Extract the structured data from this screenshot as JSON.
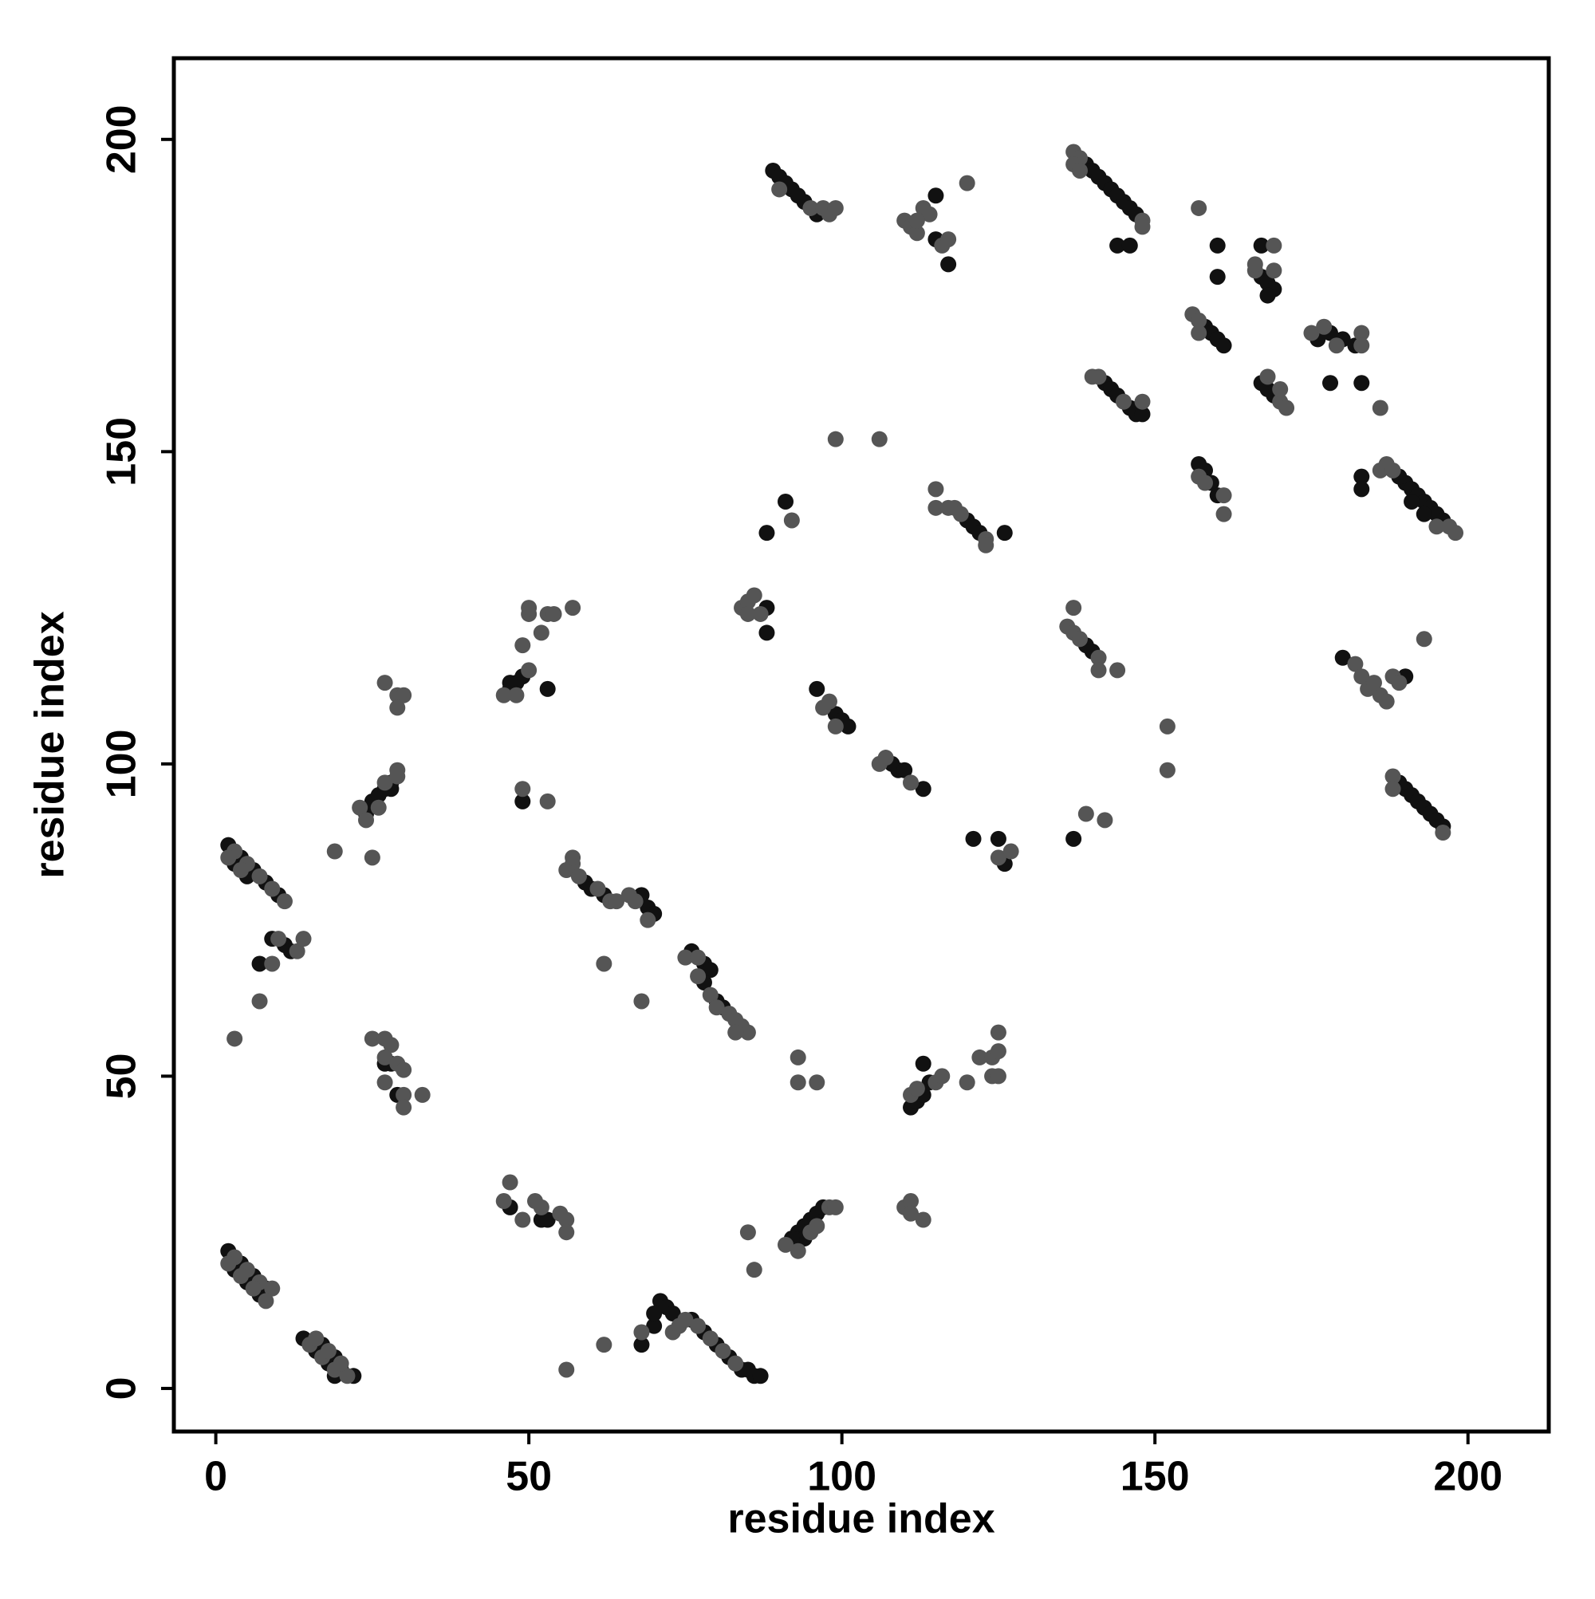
{
  "chart_data": {
    "type": "scatter",
    "xlabel": "residue index",
    "ylabel": "residue index",
    "xlim": [
      -6.7,
      212.9
    ],
    "ylim": [
      -6.9,
      213
    ],
    "xticks": [
      0,
      50,
      100,
      150,
      200
    ],
    "yticks": [
      0,
      50,
      100,
      150,
      200
    ],
    "grid": false,
    "series": [
      {
        "color": "#111111",
        "x": [
          2,
          4,
          6,
          8,
          10,
          3,
          5,
          9,
          11,
          12,
          7,
          2,
          4,
          6,
          8,
          3,
          5,
          7,
          14,
          16,
          18,
          20,
          22,
          17,
          19,
          19,
          25,
          26,
          27,
          28,
          24,
          28,
          27,
          29,
          28,
          47,
          48,
          49,
          47,
          53,
          49,
          52,
          53,
          47,
          59,
          60,
          62,
          68,
          69,
          70,
          76,
          78,
          79,
          80,
          81,
          78,
          68,
          70,
          71,
          72,
          73,
          76,
          78,
          80,
          82,
          84,
          85,
          86,
          87,
          70,
          93,
          94,
          95,
          96,
          97,
          94,
          92,
          89,
          90,
          92,
          94,
          96,
          91,
          93,
          115,
          117,
          115,
          88,
          88,
          88,
          91,
          96,
          99,
          100,
          101,
          108,
          109,
          110,
          113,
          111,
          112,
          113,
          113,
          114,
          121,
          125,
          126,
          120,
          121,
          122,
          126,
          139,
          140,
          141,
          142,
          143,
          144,
          145,
          146,
          147,
          144,
          146,
          142,
          143,
          144,
          146,
          147,
          148,
          139,
          140,
          137,
          157,
          158,
          159,
          160,
          158,
          159,
          160,
          161,
          160,
          160,
          167,
          167,
          168,
          169,
          168,
          167,
          168,
          169,
          176,
          178,
          180,
          182,
          178,
          183,
          190,
          191,
          192,
          193,
          194,
          195,
          196,
          189,
          191,
          193,
          183,
          183,
          180,
          190,
          190,
          191,
          192,
          193,
          194,
          195,
          196,
          189
        ],
        "y": [
          87,
          85,
          83,
          81,
          79,
          84,
          82,
          72,
          71,
          70,
          68,
          22,
          20,
          18,
          16,
          19,
          17,
          15,
          8,
          6,
          4,
          3,
          2,
          7,
          5,
          2,
          94,
          95,
          96,
          97,
          92,
          96,
          52,
          47,
          52,
          112,
          113,
          114,
          113,
          112,
          94,
          27,
          27,
          29,
          81,
          80,
          79,
          79,
          77,
          76,
          70,
          68,
          67,
          62,
          61,
          65,
          7,
          10,
          14,
          13,
          12,
          11,
          9,
          7,
          5,
          3,
          3,
          2,
          2,
          12,
          25,
          26,
          27,
          28,
          29,
          24,
          24,
          195,
          194,
          192,
          190,
          188,
          193,
          191,
          191,
          180,
          184,
          125,
          121,
          137,
          142,
          112,
          108,
          107,
          106,
          100,
          99,
          99,
          96,
          45,
          46,
          47,
          52,
          49,
          88,
          88,
          84,
          139,
          138,
          137,
          137,
          196,
          195,
          194,
          193,
          192,
          191,
          190,
          189,
          188,
          183,
          183,
          161,
          160,
          159,
          157,
          156,
          156,
          119,
          118,
          88,
          148,
          147,
          145,
          143,
          170,
          169,
          168,
          167,
          183,
          178,
          183,
          178,
          177,
          176,
          175,
          161,
          160,
          159,
          168,
          169,
          168,
          167,
          161,
          161,
          145,
          144,
          143,
          142,
          141,
          140,
          139,
          146,
          142,
          140,
          146,
          144,
          117,
          114,
          96,
          95,
          94,
          93,
          92,
          91,
          90,
          97
        ]
      },
      {
        "color": "#555555",
        "x": [
          3,
          5,
          7,
          9,
          11,
          2,
          4,
          10,
          13,
          14,
          9,
          3,
          7,
          3,
          5,
          7,
          9,
          2,
          4,
          6,
          8,
          15,
          17,
          19,
          21,
          16,
          18,
          20,
          23,
          24,
          26,
          27,
          29,
          29,
          19,
          25,
          27,
          29,
          30,
          29,
          25,
          27,
          28,
          27,
          29,
          30,
          27,
          30,
          30,
          33,
          46,
          48,
          50,
          49,
          50,
          50,
          52,
          53,
          54,
          57,
          49,
          53,
          46,
          47,
          49,
          51,
          52,
          55,
          56,
          56,
          56,
          56,
          57,
          57,
          58,
          61,
          63,
          64,
          66,
          67,
          69,
          62,
          68,
          75,
          77,
          77,
          79,
          80,
          82,
          83,
          84,
          85,
          83,
          68,
          73,
          74,
          75,
          77,
          79,
          81,
          83,
          62,
          85,
          86,
          91,
          93,
          95,
          96,
          98,
          99,
          93,
          93,
          96,
          95,
          97,
          98,
          99,
          90,
          110,
          111,
          112,
          113,
          114,
          116,
          117,
          112,
          120,
          84,
          85,
          86,
          87,
          85,
          92,
          99,
          106,
          97,
          98,
          99,
          106,
          107,
          111,
          111,
          112,
          115,
          116,
          120,
          122,
          124,
          124,
          125,
          125,
          125,
          110,
          111,
          111,
          113,
          125,
          127,
          115,
          115,
          117,
          118,
          119,
          123,
          123,
          137,
          138,
          137,
          138,
          148,
          148,
          140,
          141,
          145,
          148,
          136,
          137,
          138,
          141,
          141,
          137,
          144,
          139,
          142,
          152,
          152,
          161,
          157,
          158,
          161,
          156,
          157,
          157,
          157,
          166,
          169,
          169,
          166,
          170,
          171,
          168,
          170,
          175,
          177,
          179,
          183,
          183,
          186,
          186,
          187,
          188,
          197,
          198,
          195,
          182,
          183,
          184,
          186,
          187,
          188,
          189,
          193,
          185,
          188,
          188,
          196
        ],
        "y": [
          86,
          84,
          82,
          80,
          78,
          85,
          83,
          72,
          70,
          72,
          68,
          56,
          62,
          21,
          19,
          17,
          16,
          20,
          18,
          16,
          14,
          7,
          5,
          3,
          2,
          8,
          6,
          4,
          93,
          91,
          93,
          97,
          98,
          99,
          86,
          85,
          113,
          111,
          111,
          109,
          56,
          56,
          55,
          53,
          52,
          51,
          49,
          47,
          45,
          47,
          111,
          111,
          115,
          119,
          124,
          125,
          121,
          124,
          124,
          125,
          96,
          94,
          30,
          33,
          27,
          30,
          29,
          28,
          27,
          25,
          3,
          83,
          84,
          85,
          82,
          80,
          78,
          78,
          79,
          78,
          75,
          68,
          62,
          69,
          69,
          66,
          63,
          61,
          60,
          59,
          58,
          57,
          57,
          9,
          9,
          10,
          11,
          10,
          8,
          6,
          4,
          7,
          25,
          19,
          23,
          22,
          25,
          26,
          29,
          29,
          53,
          49,
          49,
          189,
          189,
          188,
          189,
          192,
          187,
          186,
          185,
          189,
          188,
          183,
          184,
          187,
          193,
          125,
          126,
          127,
          124,
          124,
          139,
          152,
          152,
          109,
          110,
          106,
          100,
          101,
          97,
          47,
          48,
          49,
          50,
          49,
          53,
          53,
          50,
          57,
          50,
          54,
          29,
          30,
          28,
          27,
          85,
          86,
          144,
          141,
          141,
          141,
          140,
          136,
          135,
          198,
          197,
          196,
          195,
          187,
          186,
          162,
          162,
          158,
          158,
          122,
          121,
          120,
          117,
          115,
          125,
          115,
          92,
          91,
          106,
          99,
          140,
          146,
          145,
          143,
          172,
          171,
          169,
          189,
          179,
          179,
          183,
          180,
          158,
          157,
          162,
          160,
          169,
          170,
          167,
          169,
          167,
          157,
          147,
          148,
          147,
          138,
          137,
          138,
          116,
          114,
          112,
          111,
          110,
          114,
          113,
          120,
          113,
          98,
          96,
          89
        ]
      }
    ]
  }
}
